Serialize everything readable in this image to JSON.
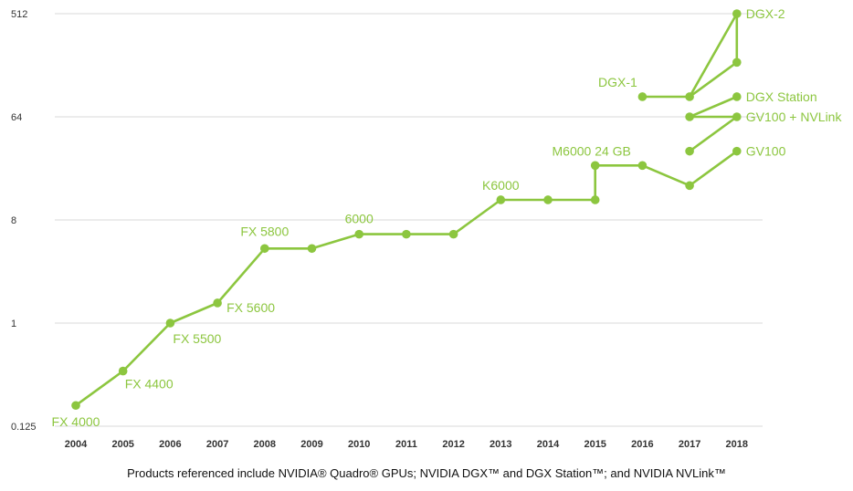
{
  "chart_data": {
    "type": "line",
    "y_scale": "log2",
    "ylim": [
      0.125,
      512
    ],
    "y_ticks": [
      "0.125",
      "1",
      "8",
      "64",
      "512"
    ],
    "categories": [
      "2004",
      "2005",
      "2006",
      "2007",
      "2008",
      "2009",
      "2010",
      "2011",
      "2012",
      "2013",
      "2014",
      "2015",
      "2016",
      "2017",
      "2018"
    ],
    "grid": true,
    "color": "#8cc63f",
    "series": [
      {
        "points": [
          [
            2004,
            0.19
          ],
          [
            2005,
            0.38
          ],
          [
            2006,
            1
          ],
          [
            2007,
            1.5
          ],
          [
            2008,
            4.5
          ],
          [
            2009,
            4.5
          ],
          [
            2010,
            6
          ],
          [
            2011,
            6
          ],
          [
            2012,
            6
          ],
          [
            2013,
            12
          ],
          [
            2014,
            12
          ],
          [
            2015,
            12
          ],
          [
            2015,
            24
          ],
          [
            2016,
            24
          ],
          [
            2017,
            16
          ],
          [
            2018,
            32
          ]
        ]
      },
      {
        "points": [
          [
            2016,
            96
          ],
          [
            2017,
            96
          ],
          [
            2018,
            512
          ]
        ]
      },
      {
        "points": [
          [
            2017,
            96
          ],
          [
            2018,
            192
          ],
          [
            2018,
            512
          ]
        ]
      },
      {
        "points": [
          [
            2017,
            64
          ],
          [
            2018,
            96
          ]
        ]
      },
      {
        "points": [
          [
            2017,
            64
          ],
          [
            2018,
            64
          ]
        ]
      },
      {
        "points": [
          [
            2017,
            32
          ],
          [
            2018,
            64
          ]
        ]
      }
    ],
    "annotations": [
      {
        "text": "FX 4000",
        "x": 2004,
        "y": 0.19
      },
      {
        "text": "FX 4400",
        "x": 2005,
        "y": 0.38
      },
      {
        "text": "FX 5500",
        "x": 2006,
        "y": 1
      },
      {
        "text": "FX 5600",
        "x": 2007,
        "y": 1.5
      },
      {
        "text": "FX 5800",
        "x": 2008,
        "y": 4.5
      },
      {
        "text": "6000",
        "x": 2010,
        "y": 6
      },
      {
        "text": "K6000",
        "x": 2013,
        "y": 12
      },
      {
        "text": "M6000 24 GB",
        "x": 2015,
        "y": 24
      },
      {
        "text": "DGX-1",
        "x": 2016,
        "y": 96
      },
      {
        "text": "DGX-2",
        "x": 2018,
        "y": 512
      },
      {
        "text": "DGX Station",
        "x": 2018,
        "y": 96
      },
      {
        "text": "GV100 + NVLink",
        "x": 2018,
        "y": 64
      },
      {
        "text": "GV100",
        "x": 2018,
        "y": 32
      }
    ]
  },
  "caption": "Products referenced include NVIDIA® Quadro® GPUs; NVIDIA DGX™ and DGX Station™; and NVIDIA NVLink™"
}
